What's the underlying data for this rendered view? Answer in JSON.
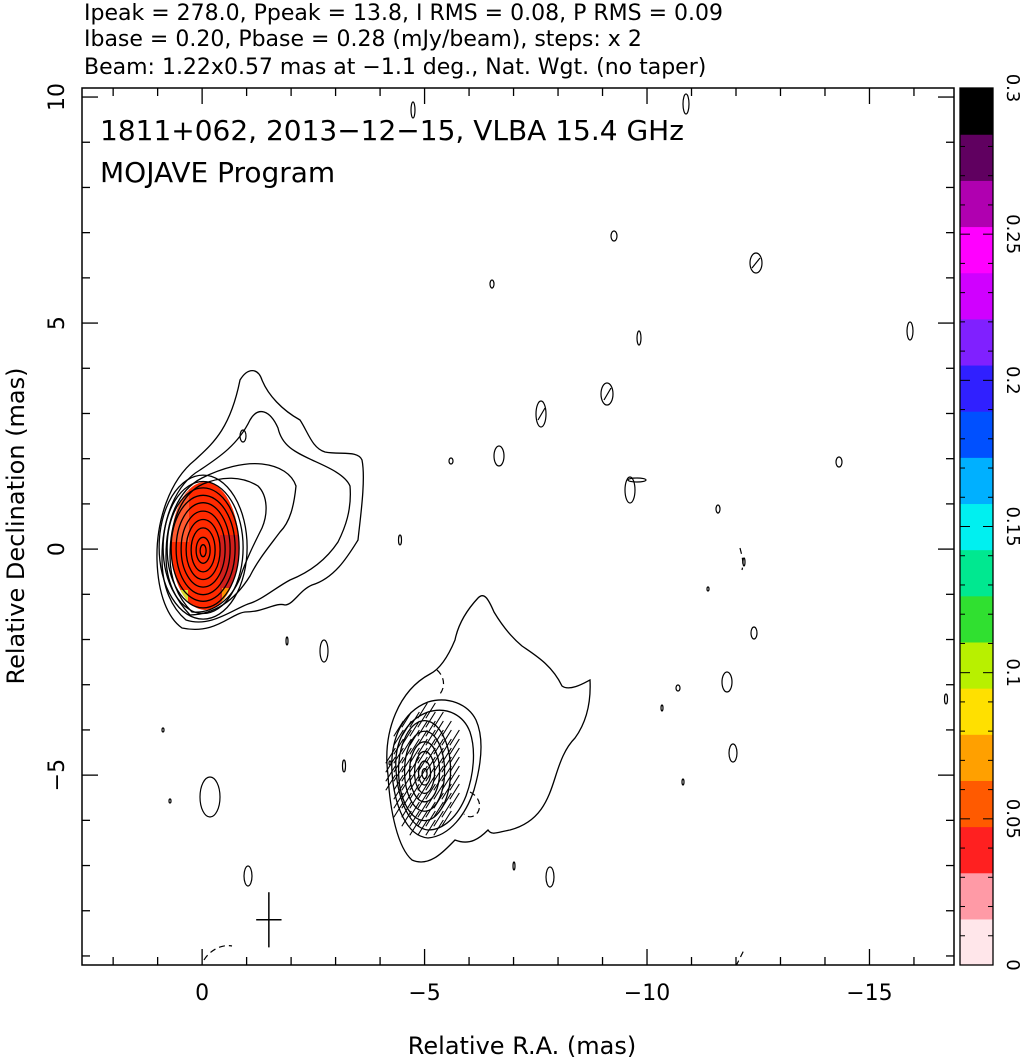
{
  "header": {
    "line1": "Ipeak = 278.0, Ppeak = 13.8, I RMS = 0.08, P RMS = 0.09",
    "line2": "Ibase = 0.20, Pbase = 0.28 (mJy/beam), steps: x 2",
    "line3": "Beam: 1.22x0.57 mas at −1.1 deg., Nat. Wgt. (no taper)"
  },
  "annotation": {
    "line1": "1811+062, 2013−12−15, VLBA 15.4 GHz",
    "line2": "MOJAVE Program"
  },
  "chart_data": {
    "type": "contour",
    "xlabel": "Relative R.A. (mas)",
    "ylabel": "Relative Declination (mas)",
    "xlim": [
      2.7,
      -16.9
    ],
    "ylim": [
      -9.2,
      10.2
    ],
    "x_ticks": [
      0,
      -5,
      -10,
      -15
    ],
    "x_tick_labels": [
      "0",
      "−5",
      "−10",
      "−15"
    ],
    "y_ticks": [
      -5,
      0,
      5,
      10
    ],
    "y_tick_labels": [
      "−5",
      "0",
      "5",
      "10"
    ],
    "colorbar": {
      "min": 0,
      "max": 0.3,
      "ticks": [
        0,
        0.05,
        0.1,
        0.15,
        0.2,
        0.25,
        0.3
      ],
      "tick_labels": [
        "0",
        "0.05",
        "0.1",
        "0.15",
        "0.2",
        "0.25",
        "0.3"
      ],
      "colors": [
        "#ffe6ea",
        "#ff9aa6",
        "#ff2020",
        "#ff5a00",
        "#ffa000",
        "#ffe000",
        "#b8f000",
        "#30e030",
        "#00e890",
        "#00f0f0",
        "#00b0ff",
        "#0050ff",
        "#3020ff",
        "#8020ff",
        "#d000ff",
        "#ff00ff",
        "#b000b0",
        "#600060",
        "#000000"
      ]
    },
    "core": {
      "x": 0,
      "y": 0,
      "contour_levels": 11
    },
    "jet_component": {
      "x": -5,
      "y": -4.9,
      "contour_levels": 6
    },
    "beam": {
      "x": -1.5,
      "y": -8.2,
      "major": 1.22,
      "minor": 0.57,
      "pa_deg": -1.1
    },
    "polarization_color": "#ff2a00"
  }
}
